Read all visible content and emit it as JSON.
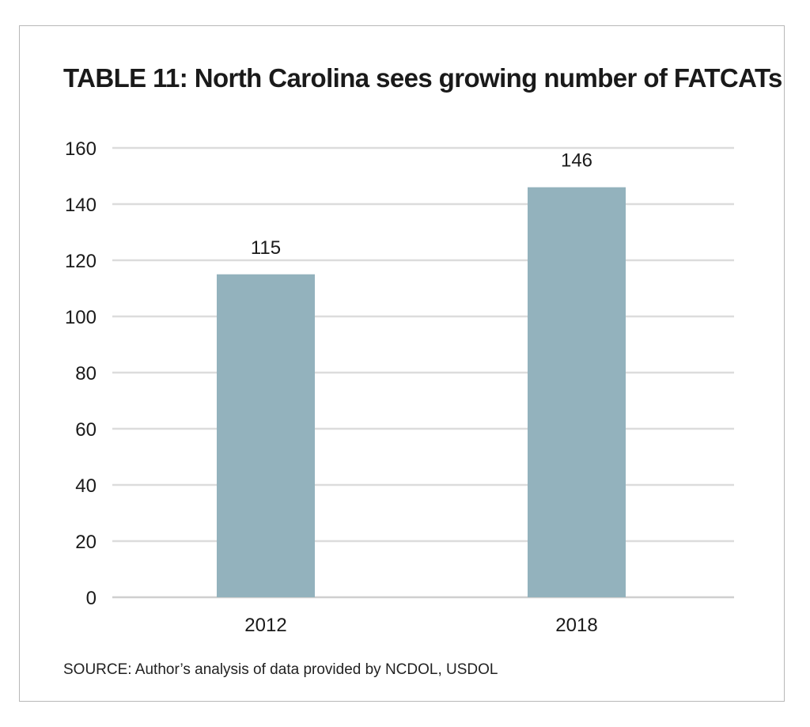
{
  "colors": {
    "bar": "#93b2bd",
    "gridline": "#dcdcdc",
    "baseline": "#cfcfcf",
    "frame": "#b8b8b8",
    "text": "#1a1a1a"
  },
  "chart_data": {
    "type": "bar",
    "title": "TABLE 11:  North Carolina sees growing number of FATCATs",
    "source": "SOURCE: Author’s analysis of data provided by NCDOL, USDOL",
    "categories": [
      "2012",
      "2018"
    ],
    "values": [
      115,
      146
    ],
    "data_labels": [
      "115",
      "146"
    ],
    "xlabel": "",
    "ylabel": "",
    "ylim": [
      0,
      160
    ],
    "yticks": [
      0,
      20,
      40,
      60,
      80,
      100,
      120,
      140,
      160
    ],
    "ytick_labels": [
      "0",
      "20",
      "40",
      "60",
      "80",
      "100",
      "120",
      "140",
      "160"
    ],
    "grid": true,
    "legend": "none"
  }
}
